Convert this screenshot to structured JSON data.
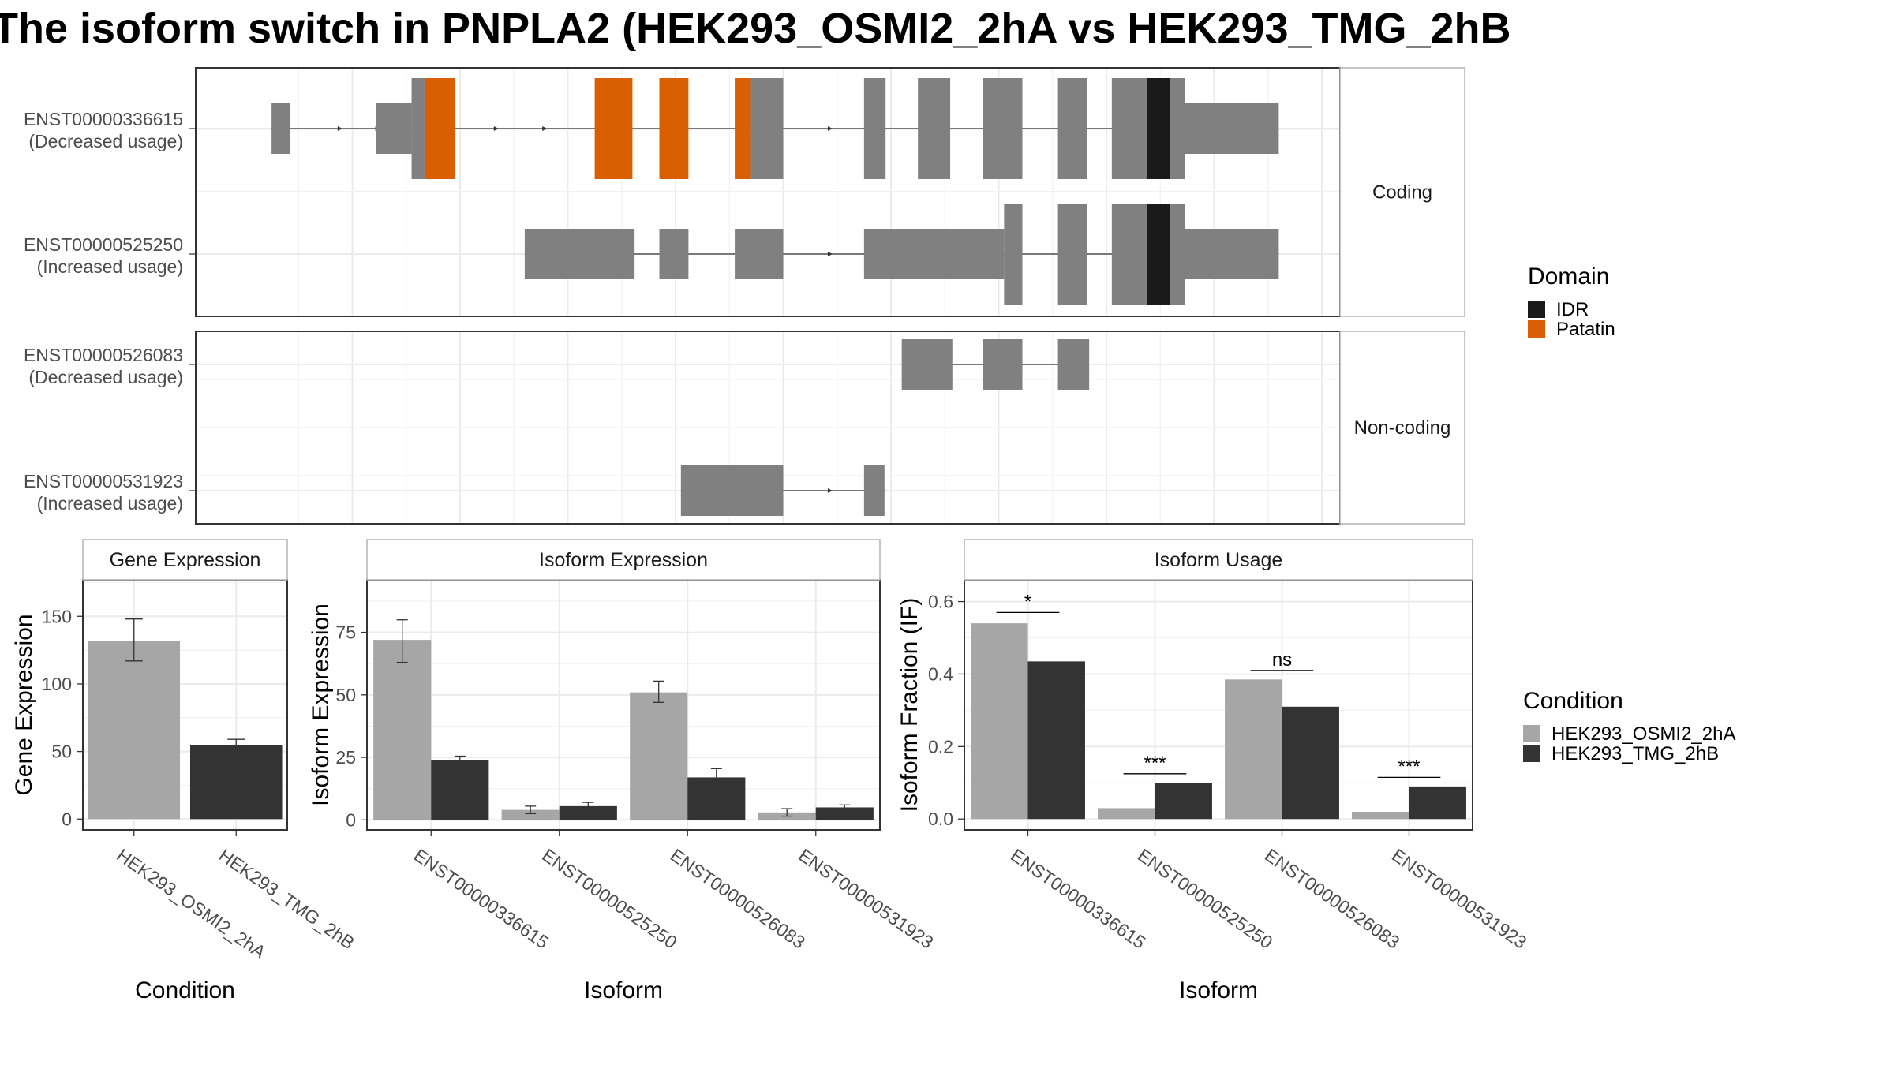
{
  "title": "The isoform switch in PNPLA2 (HEK293_OSMI2_2hA vs HEK293_TMG_2hB",
  "colors": {
    "exon": "#808080",
    "idr": "#1a1a1a",
    "patatin": "#d95f02",
    "cond1": "#a6a6a6",
    "cond2": "#333333",
    "grid": "#ebebeb",
    "strip_border": "#b3b3b3"
  },
  "structure": {
    "coordinate_range": [
      0,
      100
    ],
    "facets": [
      {
        "label": "Coding",
        "transcripts": [
          {
            "id": "ENST00000336615",
            "usage": "(Decreased usage)",
            "line": [
              2.5,
              90.5
            ],
            "arrows": [
              9.0,
              12.5,
              23.5,
              28.0,
              54.5
            ],
            "exons": [
              {
                "start": 2.5,
                "end": 4.2,
                "h": "utr"
              },
              {
                "start": 12.2,
                "end": 15.5,
                "h": "utr"
              },
              {
                "start": 15.5,
                "end": 16.7,
                "h": "cds"
              },
              {
                "start": 16.7,
                "end": 19.5,
                "h": "cds",
                "domain": "Patatin"
              },
              {
                "start": 32.5,
                "end": 36.0,
                "h": "cds",
                "domain": "Patatin"
              },
              {
                "start": 38.5,
                "end": 41.2,
                "h": "cds",
                "domain": "Patatin"
              },
              {
                "start": 45.5,
                "end": 47.0,
                "h": "cds",
                "domain": "Patatin"
              },
              {
                "start": 47.0,
                "end": 50.0,
                "h": "cds"
              },
              {
                "start": 57.5,
                "end": 59.5,
                "h": "cds"
              },
              {
                "start": 62.5,
                "end": 65.5,
                "h": "cds"
              },
              {
                "start": 68.5,
                "end": 72.2,
                "h": "cds"
              },
              {
                "start": 75.5,
                "end": 78.2,
                "h": "cds"
              },
              {
                "start": 80.5,
                "end": 83.8,
                "h": "cds"
              },
              {
                "start": 83.8,
                "end": 85.9,
                "h": "cds",
                "domain": "IDR"
              },
              {
                "start": 85.9,
                "end": 87.3,
                "h": "cds"
              },
              {
                "start": 87.3,
                "end": 96.0,
                "h": "utr"
              }
            ]
          },
          {
            "id": "ENST00000525250",
            "usage": "(Increased usage)",
            "line": [
              26.0,
              96.0
            ],
            "arrows": [
              54.5,
              58.5
            ],
            "exons": [
              {
                "start": 26.0,
                "end": 36.2,
                "h": "utr"
              },
              {
                "start": 38.5,
                "end": 41.2,
                "h": "utr"
              },
              {
                "start": 45.5,
                "end": 50.0,
                "h": "utr"
              },
              {
                "start": 57.5,
                "end": 70.5,
                "h": "utr"
              },
              {
                "start": 70.5,
                "end": 72.2,
                "h": "cds"
              },
              {
                "start": 75.5,
                "end": 78.2,
                "h": "cds"
              },
              {
                "start": 80.5,
                "end": 83.8,
                "h": "cds"
              },
              {
                "start": 83.8,
                "end": 85.9,
                "h": "cds",
                "domain": "IDR"
              },
              {
                "start": 85.9,
                "end": 87.3,
                "h": "cds"
              },
              {
                "start": 87.3,
                "end": 96.0,
                "h": "utr"
              }
            ]
          }
        ]
      },
      {
        "label": "Non-coding",
        "transcripts": [
          {
            "id": "ENST00000526083",
            "usage": "(Decreased usage)",
            "line": [
              61.0,
              78.2
            ],
            "arrows": [],
            "exons": [
              {
                "start": 61.0,
                "end": 65.7,
                "h": "utr"
              },
              {
                "start": 68.5,
                "end": 72.2,
                "h": "utr"
              },
              {
                "start": 75.5,
                "end": 78.4,
                "h": "utr"
              }
            ]
          },
          {
            "id": "ENST00000531923",
            "usage": "(Increased usage)",
            "line": [
              40.5,
              59.5
            ],
            "arrows": [
              54.5,
              58.5
            ],
            "exons": [
              {
                "start": 40.5,
                "end": 50.0,
                "h": "utr"
              },
              {
                "start": 57.5,
                "end": 59.4,
                "h": "utr"
              }
            ]
          }
        ]
      }
    ]
  },
  "legend_domain": {
    "title": "Domain",
    "items": [
      {
        "label": "IDR",
        "color": "#1a1a1a"
      },
      {
        "label": "Patatin",
        "color": "#d95f02"
      }
    ]
  },
  "legend_condition": {
    "title": "Condition",
    "items": [
      {
        "label": "HEK293_OSMI2_2hA",
        "color": "#a6a6a6"
      },
      {
        "label": "HEK293_TMG_2hB",
        "color": "#333333"
      }
    ]
  },
  "chart_data": [
    {
      "type": "bar",
      "title": "Gene Expression",
      "xlabel": "Condition",
      "ylabel": "Gene Expression",
      "categories": [
        "HEK293_OSMI2_2hA",
        "HEK293_TMG_2hB"
      ],
      "values": [
        132,
        55
      ],
      "errors_low": [
        117,
        51
      ],
      "errors_high": [
        148,
        59
      ],
      "ylim": [
        -8,
        177
      ],
      "yticks": [
        0,
        50,
        100,
        150
      ],
      "grid": true
    },
    {
      "type": "bar",
      "title": "Isoform Expression",
      "xlabel": "Isoform",
      "ylabel": "Isoform Expression",
      "categories": [
        "ENST00000336615",
        "ENST00000525250",
        "ENST00000526083",
        "ENST00000531923"
      ],
      "series": [
        {
          "name": "HEK293_OSMI2_2hA",
          "values": [
            72,
            4,
            51,
            3
          ],
          "err_low": [
            63,
            2.5,
            47,
            1.5
          ],
          "err_high": [
            80,
            5.5,
            55.5,
            4.5
          ]
        },
        {
          "name": "HEK293_TMG_2hB",
          "values": [
            24,
            5.5,
            17,
            5
          ],
          "err_low": [
            22.5,
            4,
            14,
            4
          ],
          "err_high": [
            25.5,
            7,
            20.5,
            6
          ]
        }
      ],
      "ylim": [
        -4,
        96
      ],
      "yticks": [
        0,
        25,
        50,
        75
      ],
      "grid": true
    },
    {
      "type": "bar",
      "title": "Isoform Usage",
      "xlabel": "Isoform",
      "ylabel": "Isoform Fraction (IF)",
      "categories": [
        "ENST00000336615",
        "ENST00000525250",
        "ENST00000526083",
        "ENST00000531923"
      ],
      "series": [
        {
          "name": "HEK293_OSMI2_2hA",
          "values": [
            0.54,
            0.03,
            0.385,
            0.02
          ]
        },
        {
          "name": "HEK293_TMG_2hB",
          "values": [
            0.435,
            0.1,
            0.31,
            0.09
          ]
        }
      ],
      "significance": [
        {
          "label": "*",
          "y": 0.57
        },
        {
          "label": "***",
          "y": 0.125
        },
        {
          "label": "ns",
          "y": 0.41
        },
        {
          "label": "***",
          "y": 0.115
        }
      ],
      "ylim": [
        -0.03,
        0.66
      ],
      "yticks": [
        0.0,
        0.2,
        0.4,
        0.6
      ],
      "ytick_labels": [
        "0.0",
        "0.2",
        "0.4",
        "0.6"
      ],
      "grid": true
    }
  ]
}
